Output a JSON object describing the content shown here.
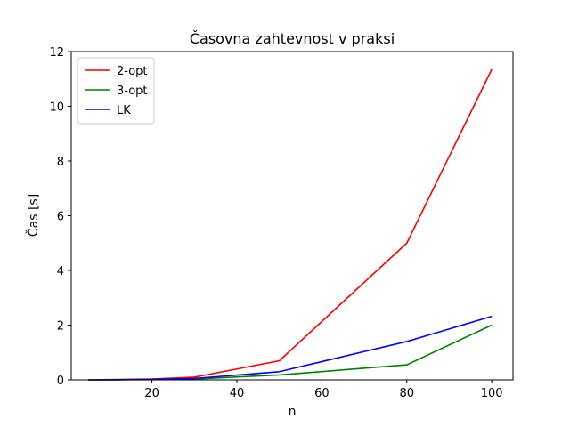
{
  "chart_data": {
    "type": "line",
    "title": "Časovna zahtevnost v praksi",
    "xlabel": "n",
    "ylabel": "Čas [s]",
    "xlim": [
      1,
      105
    ],
    "ylim": [
      0,
      12
    ],
    "xticks": [
      20,
      40,
      60,
      80,
      100
    ],
    "yticks": [
      0,
      2,
      4,
      6,
      8,
      10,
      12
    ],
    "grid": false,
    "legend_position": "upper-left",
    "series": [
      {
        "name": "2-opt",
        "color": "#ff0000",
        "x": [
          5,
          10,
          20,
          30,
          50,
          80,
          100
        ],
        "y": [
          0.0,
          0.01,
          0.03,
          0.1,
          0.7,
          5.0,
          11.35
        ]
      },
      {
        "name": "3-opt",
        "color": "#008000",
        "x": [
          5,
          10,
          20,
          30,
          50,
          80,
          100
        ],
        "y": [
          0.0,
          0.0,
          0.01,
          0.03,
          0.18,
          0.55,
          2.0
        ]
      },
      {
        "name": "LK",
        "color": "#0000ff",
        "x": [
          5,
          10,
          20,
          30,
          50,
          80,
          100
        ],
        "y": [
          0.0,
          0.0,
          0.02,
          0.05,
          0.3,
          1.4,
          2.32
        ]
      }
    ]
  }
}
